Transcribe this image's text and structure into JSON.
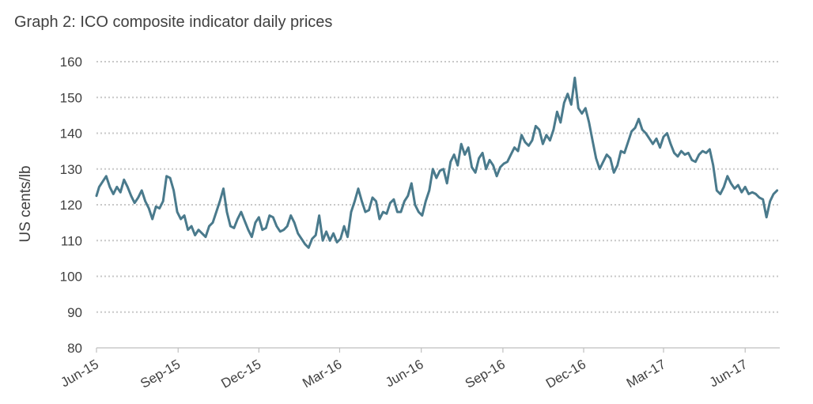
{
  "chart_data": {
    "type": "line",
    "title": "Graph 2: ICO composite indicator daily prices",
    "xlabel": "",
    "ylabel": "US cents/lb",
    "ylim": [
      80,
      160
    ],
    "yticks": [
      80,
      90,
      100,
      110,
      120,
      130,
      140,
      150,
      160
    ],
    "xlim": [
      "2015-06-01",
      "2017-07-10"
    ],
    "x_tick_labels": [
      "Jun-15",
      "Sep-15",
      "Dec-15",
      "Mar-16",
      "Jun-16",
      "Sep-16",
      "Dec-16",
      "Mar-17",
      "Jun-17"
    ],
    "x_tick_dates": [
      "2015-06-01",
      "2015-09-01",
      "2015-12-01",
      "2016-03-01",
      "2016-06-01",
      "2016-09-01",
      "2016-12-01",
      "2017-03-01",
      "2017-06-01"
    ],
    "grid": "horizontal dotted",
    "legend": "none",
    "series": [
      {
        "color": "#4a7a8c",
        "points": [
          [
            "2015-06-01",
            122.5
          ],
          [
            "2015-06-04",
            125
          ],
          [
            "2015-06-08",
            126.5
          ],
          [
            "2015-06-12",
            128
          ],
          [
            "2015-06-16",
            125
          ],
          [
            "2015-06-20",
            123
          ],
          [
            "2015-06-24",
            125
          ],
          [
            "2015-06-28",
            123.5
          ],
          [
            "2015-07-02",
            127
          ],
          [
            "2015-07-06",
            125
          ],
          [
            "2015-07-10",
            122.5
          ],
          [
            "2015-07-14",
            120.5
          ],
          [
            "2015-07-18",
            122
          ],
          [
            "2015-07-22",
            124
          ],
          [
            "2015-07-26",
            121
          ],
          [
            "2015-07-30",
            119
          ],
          [
            "2015-08-03",
            116
          ],
          [
            "2015-08-07",
            119.5
          ],
          [
            "2015-08-11",
            119
          ],
          [
            "2015-08-15",
            121
          ],
          [
            "2015-08-19",
            128
          ],
          [
            "2015-08-23",
            127.5
          ],
          [
            "2015-08-27",
            124
          ],
          [
            "2015-08-31",
            118
          ],
          [
            "2015-09-04",
            116
          ],
          [
            "2015-09-08",
            117
          ],
          [
            "2015-09-12",
            113
          ],
          [
            "2015-09-16",
            114
          ],
          [
            "2015-09-20",
            111.5
          ],
          [
            "2015-09-24",
            113
          ],
          [
            "2015-09-28",
            112
          ],
          [
            "2015-10-02",
            111
          ],
          [
            "2015-10-06",
            114
          ],
          [
            "2015-10-10",
            115
          ],
          [
            "2015-10-14",
            118
          ],
          [
            "2015-10-18",
            121
          ],
          [
            "2015-10-22",
            124.5
          ],
          [
            "2015-10-26",
            118
          ],
          [
            "2015-10-30",
            114
          ],
          [
            "2015-11-03",
            113.5
          ],
          [
            "2015-11-07",
            116
          ],
          [
            "2015-11-11",
            118
          ],
          [
            "2015-11-15",
            115.5
          ],
          [
            "2015-11-19",
            113
          ],
          [
            "2015-11-23",
            111
          ],
          [
            "2015-11-27",
            115
          ],
          [
            "2015-12-01",
            116.5
          ],
          [
            "2015-12-05",
            113
          ],
          [
            "2015-12-09",
            113.5
          ],
          [
            "2015-12-13",
            117
          ],
          [
            "2015-12-17",
            116.5
          ],
          [
            "2015-12-21",
            114
          ],
          [
            "2015-12-25",
            112.5
          ],
          [
            "2015-12-29",
            113
          ],
          [
            "2016-01-02",
            114
          ],
          [
            "2016-01-06",
            117
          ],
          [
            "2016-01-10",
            115
          ],
          [
            "2016-01-14",
            112
          ],
          [
            "2016-01-18",
            110.5
          ],
          [
            "2016-01-22",
            109
          ],
          [
            "2016-01-26",
            108
          ],
          [
            "2016-01-30",
            110.5
          ],
          [
            "2016-02-03",
            111.5
          ],
          [
            "2016-02-07",
            117
          ],
          [
            "2016-02-11",
            110
          ],
          [
            "2016-02-15",
            112.5
          ],
          [
            "2016-02-19",
            110
          ],
          [
            "2016-02-23",
            112
          ],
          [
            "2016-02-27",
            109.5
          ],
          [
            "2016-03-02",
            110.5
          ],
          [
            "2016-03-06",
            114
          ],
          [
            "2016-03-10",
            111
          ],
          [
            "2016-03-14",
            118
          ],
          [
            "2016-03-18",
            121
          ],
          [
            "2016-03-22",
            124.5
          ],
          [
            "2016-03-26",
            121
          ],
          [
            "2016-03-30",
            118
          ],
          [
            "2016-04-03",
            118.5
          ],
          [
            "2016-04-07",
            122
          ],
          [
            "2016-04-11",
            121
          ],
          [
            "2016-04-15",
            116
          ],
          [
            "2016-04-19",
            118
          ],
          [
            "2016-04-23",
            117.5
          ],
          [
            "2016-04-27",
            120.5
          ],
          [
            "2016-05-01",
            121.5
          ],
          [
            "2016-05-05",
            118
          ],
          [
            "2016-05-09",
            118
          ],
          [
            "2016-05-13",
            121
          ],
          [
            "2016-05-17",
            122.5
          ],
          [
            "2016-05-21",
            126
          ],
          [
            "2016-05-25",
            120
          ],
          [
            "2016-05-29",
            118
          ],
          [
            "2016-06-02",
            117
          ],
          [
            "2016-06-06",
            121
          ],
          [
            "2016-06-10",
            124
          ],
          [
            "2016-06-14",
            130
          ],
          [
            "2016-06-18",
            127.5
          ],
          [
            "2016-06-22",
            129.5
          ],
          [
            "2016-06-26",
            130
          ],
          [
            "2016-06-30",
            126
          ],
          [
            "2016-07-04",
            132
          ],
          [
            "2016-07-08",
            134
          ],
          [
            "2016-07-12",
            131
          ],
          [
            "2016-07-16",
            137
          ],
          [
            "2016-07-20",
            134
          ],
          [
            "2016-07-24",
            136
          ],
          [
            "2016-07-28",
            130.5
          ],
          [
            "2016-08-01",
            129
          ],
          [
            "2016-08-05",
            133
          ],
          [
            "2016-08-09",
            134.5
          ],
          [
            "2016-08-13",
            130
          ],
          [
            "2016-08-17",
            132.5
          ],
          [
            "2016-08-21",
            131
          ],
          [
            "2016-08-25",
            128
          ],
          [
            "2016-08-29",
            130.5
          ],
          [
            "2016-09-02",
            131.5
          ],
          [
            "2016-09-06",
            132
          ],
          [
            "2016-09-10",
            134
          ],
          [
            "2016-09-14",
            136
          ],
          [
            "2016-09-18",
            135
          ],
          [
            "2016-09-22",
            139.5
          ],
          [
            "2016-09-26",
            137.5
          ],
          [
            "2016-09-30",
            136.5
          ],
          [
            "2016-10-04",
            138
          ],
          [
            "2016-10-08",
            142
          ],
          [
            "2016-10-12",
            141
          ],
          [
            "2016-10-16",
            137
          ],
          [
            "2016-10-20",
            139.5
          ],
          [
            "2016-10-24",
            138
          ],
          [
            "2016-10-28",
            141
          ],
          [
            "2016-11-01",
            146
          ],
          [
            "2016-11-05",
            143
          ],
          [
            "2016-11-09",
            148.5
          ],
          [
            "2016-11-13",
            151
          ],
          [
            "2016-11-17",
            148
          ],
          [
            "2016-11-21",
            155.5
          ],
          [
            "2016-11-25",
            147
          ],
          [
            "2016-11-29",
            145.5
          ],
          [
            "2016-12-03",
            147
          ],
          [
            "2016-12-07",
            143
          ],
          [
            "2016-12-11",
            138
          ],
          [
            "2016-12-15",
            133
          ],
          [
            "2016-12-19",
            130
          ],
          [
            "2016-12-23",
            132
          ],
          [
            "2016-12-27",
            134
          ],
          [
            "2016-12-31",
            133
          ],
          [
            "2017-01-04",
            129
          ],
          [
            "2017-01-08",
            131
          ],
          [
            "2017-01-12",
            135
          ],
          [
            "2017-01-16",
            134.5
          ],
          [
            "2017-01-20",
            137.5
          ],
          [
            "2017-01-24",
            140.5
          ],
          [
            "2017-01-28",
            141.5
          ],
          [
            "2017-02-01",
            144
          ],
          [
            "2017-02-05",
            141
          ],
          [
            "2017-02-09",
            140
          ],
          [
            "2017-02-13",
            138.5
          ],
          [
            "2017-02-17",
            137
          ],
          [
            "2017-02-21",
            138.5
          ],
          [
            "2017-02-25",
            136
          ],
          [
            "2017-03-01",
            139
          ],
          [
            "2017-03-05",
            140
          ],
          [
            "2017-03-09",
            137
          ],
          [
            "2017-03-13",
            134.5
          ],
          [
            "2017-03-17",
            133.5
          ],
          [
            "2017-03-21",
            135
          ],
          [
            "2017-03-25",
            134
          ],
          [
            "2017-03-29",
            134.5
          ],
          [
            "2017-04-02",
            132.5
          ],
          [
            "2017-04-06",
            132
          ],
          [
            "2017-04-10",
            134
          ],
          [
            "2017-04-14",
            135
          ],
          [
            "2017-04-18",
            134.5
          ],
          [
            "2017-04-22",
            135.5
          ],
          [
            "2017-04-26",
            131
          ],
          [
            "2017-04-30",
            124
          ],
          [
            "2017-05-04",
            123
          ],
          [
            "2017-05-08",
            125
          ],
          [
            "2017-05-12",
            128
          ],
          [
            "2017-05-16",
            126
          ],
          [
            "2017-05-20",
            124.5
          ],
          [
            "2017-05-24",
            125.5
          ],
          [
            "2017-05-28",
            123.5
          ],
          [
            "2017-06-01",
            125
          ],
          [
            "2017-06-05",
            123
          ],
          [
            "2017-06-09",
            123.5
          ],
          [
            "2017-06-13",
            123
          ],
          [
            "2017-06-17",
            122
          ],
          [
            "2017-06-21",
            121.5
          ],
          [
            "2017-06-25",
            116.5
          ],
          [
            "2017-06-29",
            121
          ],
          [
            "2017-07-03",
            123
          ],
          [
            "2017-07-07",
            124
          ]
        ]
      }
    ]
  }
}
